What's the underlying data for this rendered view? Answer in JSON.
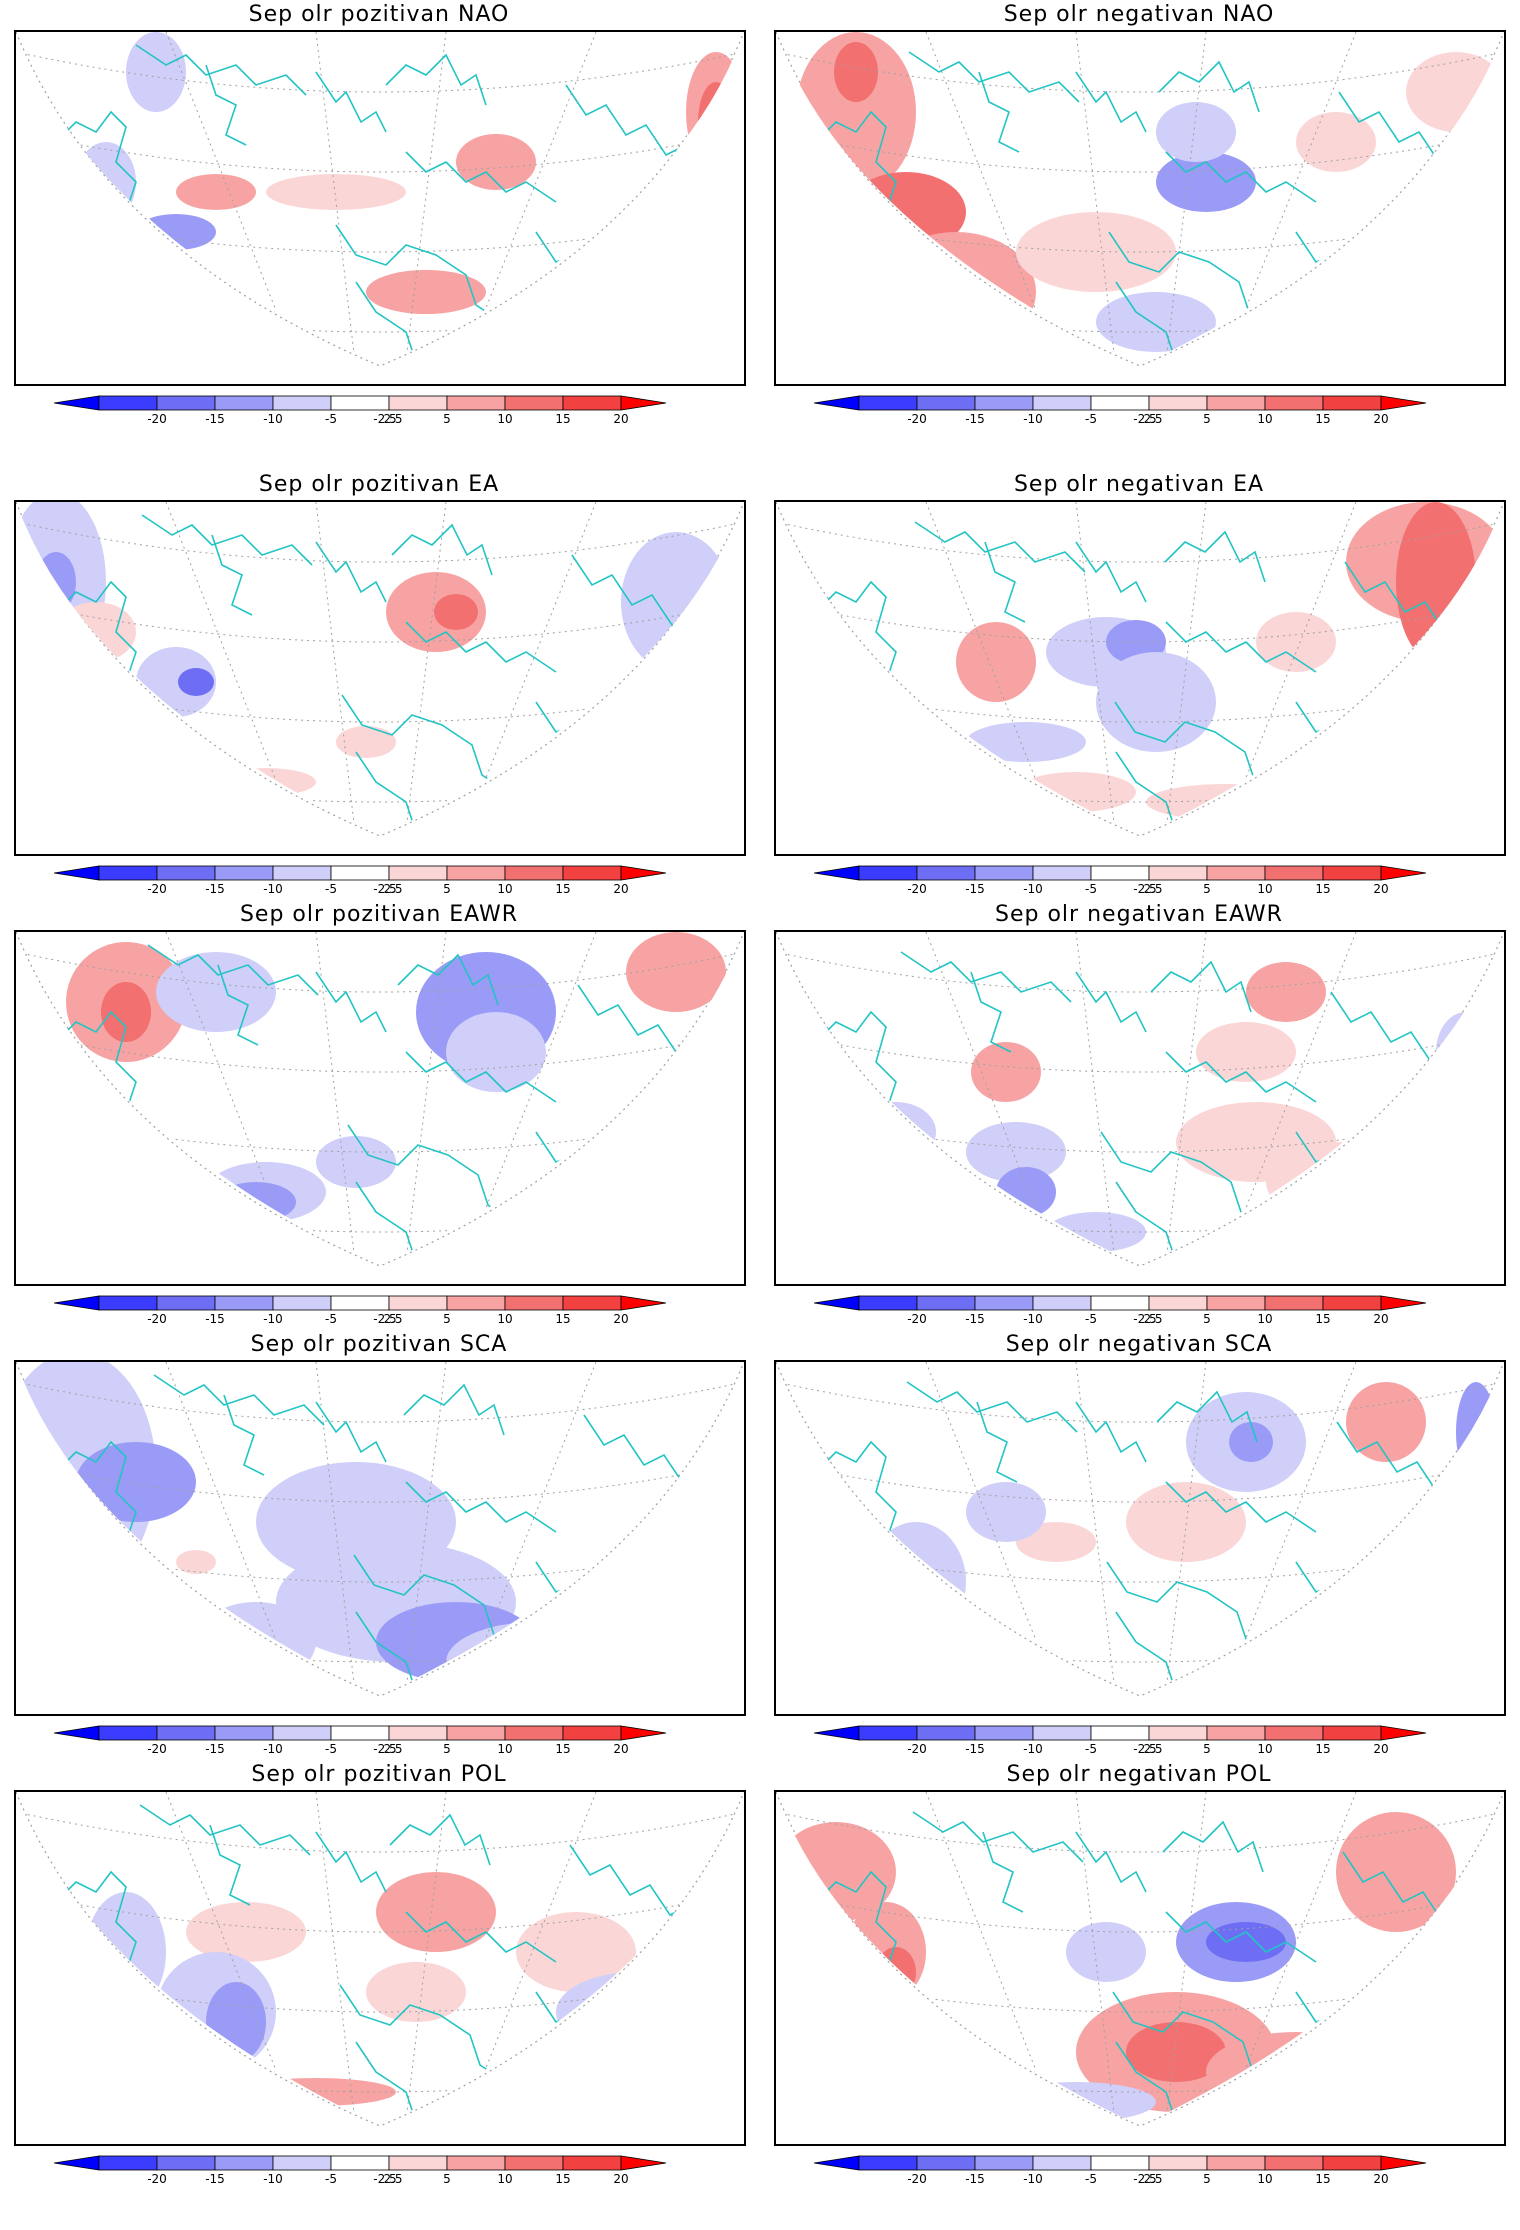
{
  "colorbar": {
    "ticks": [
      "-20",
      "-15",
      "-10",
      "-5",
      "-2.5",
      "2.5",
      "5",
      "10",
      "15",
      "20"
    ],
    "bins": [
      {
        "from": -20,
        "to": -15,
        "color": "#3c3cff"
      },
      {
        "from": -15,
        "to": -10,
        "color": "#6e6ef5"
      },
      {
        "from": -10,
        "to": -5,
        "color": "#9a9af7"
      },
      {
        "from": -5,
        "to": -2.5,
        "color": "#cfcff9"
      },
      {
        "from": -2.5,
        "to": 2.5,
        "color": "#ffffff"
      },
      {
        "from": 2.5,
        "to": 5,
        "color": "#fbd6d6"
      },
      {
        "from": 5,
        "to": 10,
        "color": "#f7a3a3"
      },
      {
        "from": 10,
        "to": 15,
        "color": "#f27070"
      },
      {
        "from": 15,
        "to": 20,
        "color": "#f24141"
      }
    ],
    "below_color": "#0000ff",
    "above_color": "#ff0000"
  },
  "colors": {
    "coastline": "#22c4c4",
    "grid": "#a0a0a0"
  },
  "panels": [
    {
      "title": "Sep olr pozitivan NAO"
    },
    {
      "title": "Sep olr negativan NAO"
    },
    {
      "title": "Sep olr pozitivan EA"
    },
    {
      "title": "Sep olr negativan EA"
    },
    {
      "title": "Sep olr pozitivan EAWR"
    },
    {
      "title": "Sep olr negativan EAWR"
    },
    {
      "title": "Sep olr pozitivan SCA"
    },
    {
      "title": "Sep olr negativan SCA"
    },
    {
      "title": "Sep olr pozitivan POL"
    },
    {
      "title": "Sep olr negativan POL"
    }
  ]
}
